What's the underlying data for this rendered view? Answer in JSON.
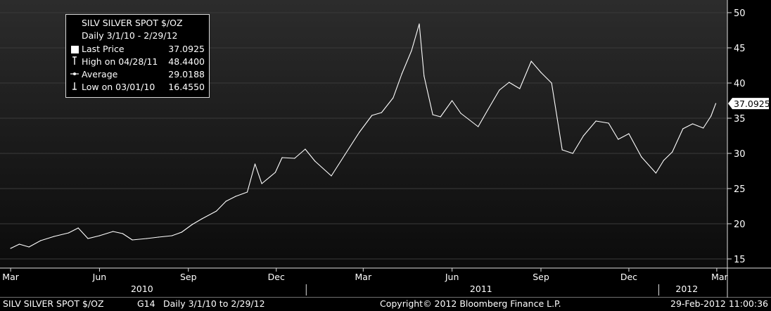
{
  "legend": {
    "ticker_line": "SILV  SILVER SPOT $/OZ",
    "range_line": "Daily 3/1/10 - 2/29/12",
    "rows": [
      {
        "label": "Last Price",
        "value": "37.0925",
        "icon": "filled-square-icon"
      },
      {
        "label": "High on 04/28/11",
        "value": "48.4400",
        "icon": "high-marker-icon"
      },
      {
        "label": "Average",
        "value": "29.0188",
        "icon": "average-marker-icon"
      },
      {
        "label": "Low on 03/01/10",
        "value": "16.4550",
        "icon": "low-marker-icon"
      }
    ]
  },
  "last_price_tag": "37.0925",
  "footer": {
    "left": "SILV  SILVER SPOT $/OZ",
    "page": "G14",
    "range": "Daily  3/1/10 to 2/29/12",
    "copyright": "Copyright© 2012 Bloomberg Finance L.P.",
    "timestamp": "29-Feb-2012 11:00:36"
  },
  "colors": {
    "line": "#ffffff",
    "background_top": "#2c2c2c",
    "background_bottom": "#0b0b0b",
    "gridline": "#3a3a3a"
  },
  "chart_data": {
    "type": "line",
    "title": "SILV  SILVER SPOT $/OZ",
    "xlabel": "",
    "ylabel": "",
    "ylim": [
      14,
      51
    ],
    "yticks": [
      15,
      20,
      25,
      30,
      35,
      40,
      45,
      50
    ],
    "grid": true,
    "legend_position": "top-left",
    "x_range": [
      "2010-03-01",
      "2012-02-29"
    ],
    "x_month_ticks": [
      {
        "label": "Mar",
        "date": "2010-03-01"
      },
      {
        "label": "Jun",
        "date": "2010-06-01"
      },
      {
        "label": "Sep",
        "date": "2010-09-01"
      },
      {
        "label": "Dec",
        "date": "2010-12-01"
      },
      {
        "label": "Mar",
        "date": "2011-03-01"
      },
      {
        "label": "Jun",
        "date": "2011-06-01"
      },
      {
        "label": "Sep",
        "date": "2011-09-01"
      },
      {
        "label": "Dec",
        "date": "2011-12-01"
      },
      {
        "label": "Mar",
        "date": "2012-03-01"
      }
    ],
    "x_year_labels": [
      {
        "label": "2010",
        "center_date": "2010-07-15"
      },
      {
        "label": "2011",
        "center_date": "2011-07-01"
      },
      {
        "label": "2012",
        "center_date": "2012-01-30"
      }
    ],
    "x_year_separators": [
      "2011-01-01",
      "2012-01-01"
    ],
    "series": [
      {
        "name": "Last Price",
        "points": [
          [
            "2010-03-01",
            16.5
          ],
          [
            "2010-03-10",
            17.1
          ],
          [
            "2010-03-20",
            16.7
          ],
          [
            "2010-04-01",
            17.6
          ],
          [
            "2010-04-15",
            18.2
          ],
          [
            "2010-04-30",
            18.7
          ],
          [
            "2010-05-10",
            19.4
          ],
          [
            "2010-05-20",
            17.9
          ],
          [
            "2010-06-01",
            18.3
          ],
          [
            "2010-06-15",
            18.9
          ],
          [
            "2010-06-25",
            18.6
          ],
          [
            "2010-07-05",
            17.7
          ],
          [
            "2010-07-20",
            17.9
          ],
          [
            "2010-08-01",
            18.1
          ],
          [
            "2010-08-15",
            18.3
          ],
          [
            "2010-08-25",
            18.8
          ],
          [
            "2010-09-05",
            19.9
          ],
          [
            "2010-09-15",
            20.7
          ],
          [
            "2010-09-30",
            21.8
          ],
          [
            "2010-10-10",
            23.2
          ],
          [
            "2010-10-20",
            23.9
          ],
          [
            "2010-11-01",
            24.5
          ],
          [
            "2010-11-09",
            28.5
          ],
          [
            "2010-11-16",
            25.7
          ],
          [
            "2010-11-30",
            27.3
          ],
          [
            "2010-12-07",
            29.4
          ],
          [
            "2010-12-20",
            29.3
          ],
          [
            "2010-12-31",
            30.6
          ],
          [
            "2011-01-10",
            28.9
          ],
          [
            "2011-01-27",
            26.8
          ],
          [
            "2011-02-10",
            29.8
          ],
          [
            "2011-02-25",
            33.0
          ],
          [
            "2011-03-10",
            35.4
          ],
          [
            "2011-03-20",
            35.8
          ],
          [
            "2011-04-01",
            37.9
          ],
          [
            "2011-04-10",
            41.3
          ],
          [
            "2011-04-20",
            44.6
          ],
          [
            "2011-04-28",
            48.4
          ],
          [
            "2011-05-03",
            41.0
          ],
          [
            "2011-05-12",
            35.5
          ],
          [
            "2011-05-20",
            35.2
          ],
          [
            "2011-06-01",
            37.5
          ],
          [
            "2011-06-10",
            35.7
          ],
          [
            "2011-06-28",
            33.8
          ],
          [
            "2011-07-08",
            36.2
          ],
          [
            "2011-07-20",
            39.0
          ],
          [
            "2011-07-30",
            40.1
          ],
          [
            "2011-08-10",
            39.2
          ],
          [
            "2011-08-22",
            43.1
          ],
          [
            "2011-09-01",
            41.5
          ],
          [
            "2011-09-12",
            40.0
          ],
          [
            "2011-09-23",
            30.5
          ],
          [
            "2011-10-04",
            30.0
          ],
          [
            "2011-10-15",
            32.5
          ],
          [
            "2011-10-28",
            34.6
          ],
          [
            "2011-11-10",
            34.3
          ],
          [
            "2011-11-20",
            32.0
          ],
          [
            "2011-12-01",
            32.8
          ],
          [
            "2011-12-14",
            29.5
          ],
          [
            "2011-12-29",
            27.2
          ],
          [
            "2012-01-06",
            29.0
          ],
          [
            "2012-01-15",
            30.2
          ],
          [
            "2012-01-26",
            33.5
          ],
          [
            "2012-02-05",
            34.2
          ],
          [
            "2012-02-16",
            33.6
          ],
          [
            "2012-02-24",
            35.3
          ],
          [
            "2012-02-29",
            37.09
          ]
        ]
      }
    ]
  }
}
